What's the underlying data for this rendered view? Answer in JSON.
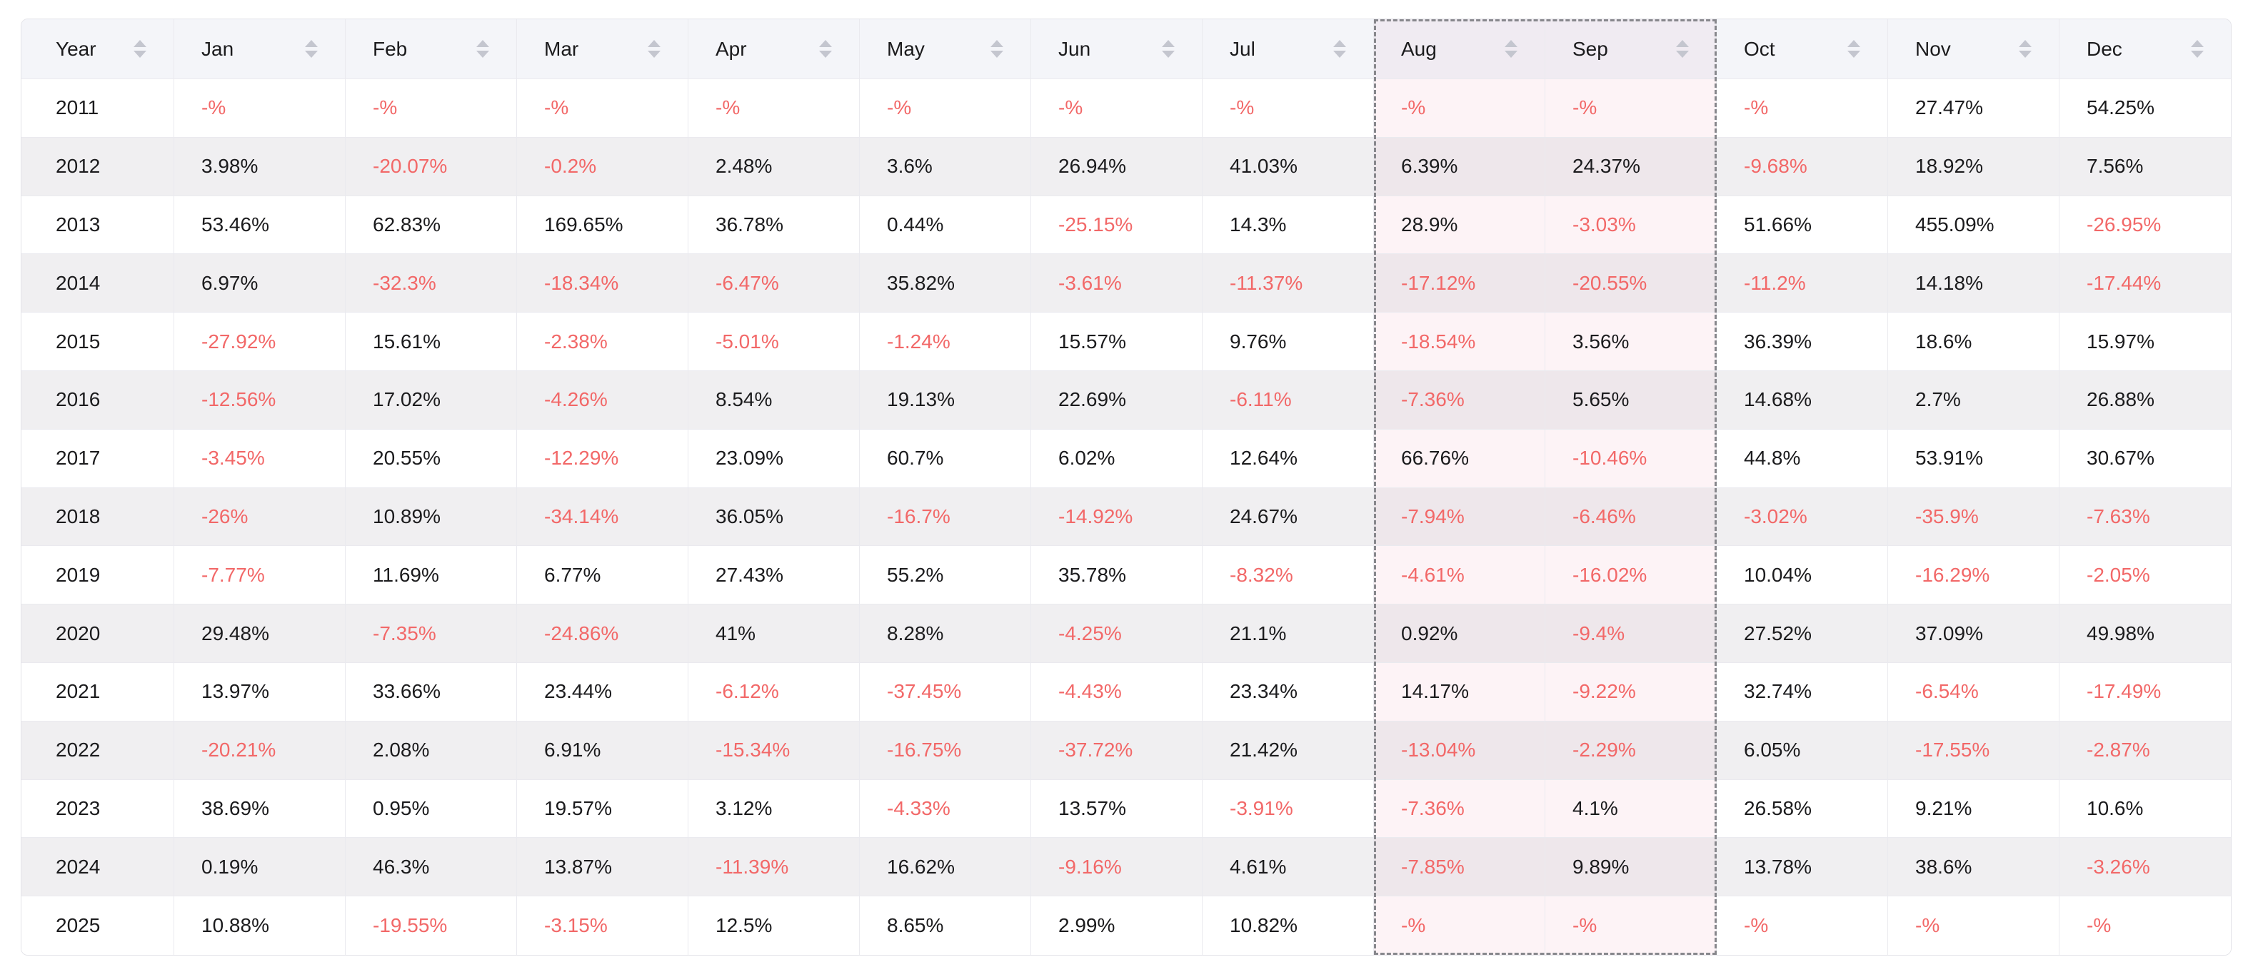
{
  "table": {
    "columns": [
      {
        "label": "Year"
      },
      {
        "label": "Jan"
      },
      {
        "label": "Feb"
      },
      {
        "label": "Mar"
      },
      {
        "label": "Apr"
      },
      {
        "label": "May"
      },
      {
        "label": "Jun"
      },
      {
        "label": "Jul"
      },
      {
        "label": "Aug"
      },
      {
        "label": "Sep"
      },
      {
        "label": "Oct"
      },
      {
        "label": "Nov"
      },
      {
        "label": "Dec"
      }
    ],
    "selected_columns": [
      "Aug",
      "Sep"
    ],
    "sort_icon": "sort-icon",
    "rows": [
      {
        "year": "2011",
        "values": [
          "-%",
          "-%",
          "-%",
          "-%",
          "-%",
          "-%",
          "-%",
          "-%",
          "-%",
          "-%",
          "27.47%",
          "54.25%"
        ]
      },
      {
        "year": "2012",
        "values": [
          "3.98%",
          "-20.07%",
          "-0.2%",
          "2.48%",
          "3.6%",
          "26.94%",
          "41.03%",
          "6.39%",
          "24.37%",
          "-9.68%",
          "18.92%",
          "7.56%"
        ]
      },
      {
        "year": "2013",
        "values": [
          "53.46%",
          "62.83%",
          "169.65%",
          "36.78%",
          "0.44%",
          "-25.15%",
          "14.3%",
          "28.9%",
          "-3.03%",
          "51.66%",
          "455.09%",
          "-26.95%"
        ]
      },
      {
        "year": "2014",
        "values": [
          "6.97%",
          "-32.3%",
          "-18.34%",
          "-6.47%",
          "35.82%",
          "-3.61%",
          "-11.37%",
          "-17.12%",
          "-20.55%",
          "-11.2%",
          "14.18%",
          "-17.44%"
        ]
      },
      {
        "year": "2015",
        "values": [
          "-27.92%",
          "15.61%",
          "-2.38%",
          "-5.01%",
          "-1.24%",
          "15.57%",
          "9.76%",
          "-18.54%",
          "3.56%",
          "36.39%",
          "18.6%",
          "15.97%"
        ]
      },
      {
        "year": "2016",
        "values": [
          "-12.56%",
          "17.02%",
          "-4.26%",
          "8.54%",
          "19.13%",
          "22.69%",
          "-6.11%",
          "-7.36%",
          "5.65%",
          "14.68%",
          "2.7%",
          "26.88%"
        ]
      },
      {
        "year": "2017",
        "values": [
          "-3.45%",
          "20.55%",
          "-12.29%",
          "23.09%",
          "60.7%",
          "6.02%",
          "12.64%",
          "66.76%",
          "-10.46%",
          "44.8%",
          "53.91%",
          "30.67%"
        ]
      },
      {
        "year": "2018",
        "values": [
          "-26%",
          "10.89%",
          "-34.14%",
          "36.05%",
          "-16.7%",
          "-14.92%",
          "24.67%",
          "-7.94%",
          "-6.46%",
          "-3.02%",
          "-35.9%",
          "-7.63%"
        ]
      },
      {
        "year": "2019",
        "values": [
          "-7.77%",
          "11.69%",
          "6.77%",
          "27.43%",
          "55.2%",
          "35.78%",
          "-8.32%",
          "-4.61%",
          "-16.02%",
          "10.04%",
          "-16.29%",
          "-2.05%"
        ]
      },
      {
        "year": "2020",
        "values": [
          "29.48%",
          "-7.35%",
          "-24.86%",
          "41%",
          "8.28%",
          "-4.25%",
          "21.1%",
          "0.92%",
          "-9.4%",
          "27.52%",
          "37.09%",
          "49.98%"
        ]
      },
      {
        "year": "2021",
        "values": [
          "13.97%",
          "33.66%",
          "23.44%",
          "-6.12%",
          "-37.45%",
          "-4.43%",
          "23.34%",
          "14.17%",
          "-9.22%",
          "32.74%",
          "-6.54%",
          "-17.49%"
        ]
      },
      {
        "year": "2022",
        "values": [
          "-20.21%",
          "2.08%",
          "6.91%",
          "-15.34%",
          "-16.75%",
          "-37.72%",
          "21.42%",
          "-13.04%",
          "-2.29%",
          "6.05%",
          "-17.55%",
          "-2.87%"
        ]
      },
      {
        "year": "2023",
        "values": [
          "38.69%",
          "0.95%",
          "19.57%",
          "3.12%",
          "-4.33%",
          "13.57%",
          "-3.91%",
          "-7.36%",
          "4.1%",
          "26.58%",
          "9.21%",
          "10.6%"
        ]
      },
      {
        "year": "2024",
        "values": [
          "0.19%",
          "46.3%",
          "13.87%",
          "-11.39%",
          "16.62%",
          "-9.16%",
          "4.61%",
          "-7.85%",
          "9.89%",
          "13.78%",
          "38.6%",
          "-3.26%"
        ]
      },
      {
        "year": "2025",
        "values": [
          "10.88%",
          "-19.55%",
          "-3.15%",
          "12.5%",
          "8.65%",
          "2.99%",
          "10.82%",
          "-%",
          "-%",
          "-%",
          "-%",
          "-%"
        ]
      }
    ],
    "colors": {
      "header_bg": "#f4f5f9",
      "row_bg": "#ffffff",
      "row_alt_bg": "#f0eff1",
      "selected_header_bg": "#f0ebf2",
      "selected_row_bg": "#fdf3f6",
      "selected_row_alt_bg": "#eee7eb",
      "negative_text": "#f26868",
      "text": "#1b1b1d",
      "grid_border": "#eaeaef",
      "outer_border": "#e3e3e8",
      "selection_border": "#87878c",
      "sort_icon": "#c4c6cf"
    }
  }
}
